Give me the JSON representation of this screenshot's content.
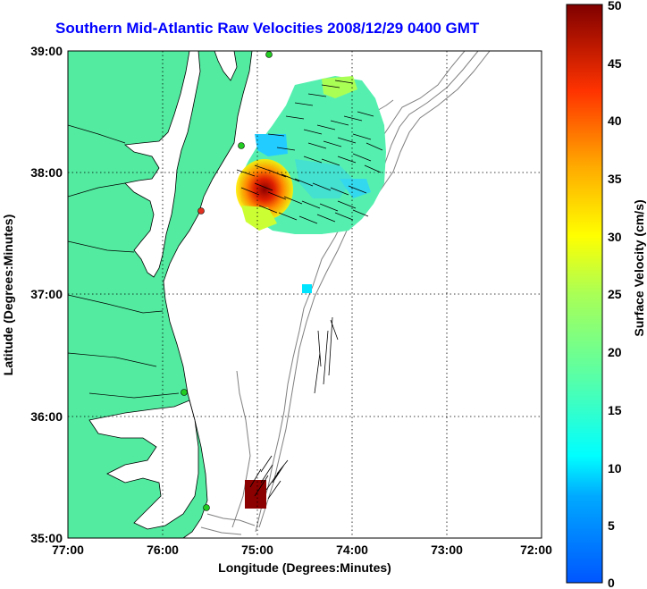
{
  "title": "Southern Mid-Atlantic Raw Velocities 2008/12/29 0400 GMT",
  "xaxis": {
    "label": "Longitude (Degrees:Minutes)",
    "ticks": [
      "77:00",
      "76:00",
      "75:00",
      "74:00",
      "73:00",
      "72:00"
    ]
  },
  "yaxis": {
    "label": "Latitude (Degrees:Minutes)",
    "ticks": [
      "39:00",
      "38:00",
      "37:00",
      "36:00",
      "35:00"
    ]
  },
  "colorbar": {
    "label": "Surface Velocity (cm/s)",
    "ticks": [
      "50",
      "45",
      "40",
      "35",
      "30",
      "25",
      "20",
      "15",
      "10",
      "5",
      "0"
    ],
    "min": 0,
    "max": 50,
    "colormap": "jet"
  },
  "colors": {
    "title": "#0000ff",
    "land": "#52eba0",
    "ocean": "#ffffff",
    "bathymetry": "#808080",
    "coastline": "#000000",
    "station": "#22cc22",
    "station_alt": "#e03020"
  },
  "map_extent": {
    "lon": [
      -77,
      -72
    ],
    "lat": [
      35,
      39
    ]
  },
  "grid": true
}
